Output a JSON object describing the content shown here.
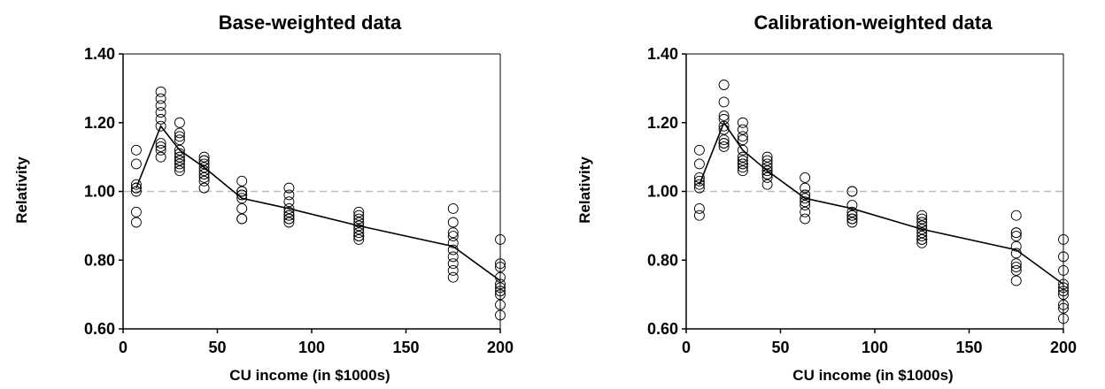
{
  "chart_data": [
    {
      "type": "scatter",
      "title": "Base-weighted data",
      "xlabel": "CU income (in $1000s)",
      "ylabel": "Relativity",
      "xlim": [
        0,
        200
      ],
      "ylim": [
        0.6,
        1.4
      ],
      "xticks": [
        0,
        50,
        100,
        150,
        200
      ],
      "yticks": [
        0.6,
        0.8,
        1.0,
        1.2,
        1.4
      ],
      "xtick_labels": [
        "0",
        "50",
        "100",
        "150",
        "200"
      ],
      "ytick_labels": [
        "0.60",
        "0.80",
        "1.00",
        "1.20",
        "1.40"
      ],
      "reference_line": {
        "y": 1.0,
        "style": "dashed",
        "color": "#bbbbbb"
      },
      "grid": false,
      "points": {
        "x": [
          7,
          7,
          7,
          7,
          7,
          7,
          7,
          7,
          20,
          20,
          20,
          20,
          20,
          20,
          20,
          20,
          20,
          20,
          30,
          30,
          30,
          30,
          30,
          30,
          30,
          30,
          30,
          30,
          30,
          30,
          43,
          43,
          43,
          43,
          43,
          43,
          43,
          43,
          43,
          43,
          63,
          63,
          63,
          63,
          63,
          63,
          63,
          63,
          63,
          88,
          88,
          88,
          88,
          88,
          88,
          88,
          88,
          88,
          88,
          125,
          125,
          125,
          125,
          125,
          125,
          125,
          125,
          125,
          125,
          175,
          175,
          175,
          175,
          175,
          175,
          175,
          175,
          175,
          175,
          200,
          200,
          200,
          200,
          200,
          200,
          200,
          200,
          200,
          200
        ],
        "y": [
          1.12,
          1.08,
          1.02,
          1.01,
          1.0,
          0.94,
          0.91,
          1.01,
          1.29,
          1.27,
          1.25,
          1.23,
          1.21,
          1.19,
          1.14,
          1.13,
          1.12,
          1.1,
          1.2,
          1.17,
          1.16,
          1.15,
          1.12,
          1.11,
          1.1,
          1.09,
          1.09,
          1.08,
          1.07,
          1.06,
          1.1,
          1.09,
          1.08,
          1.07,
          1.06,
          1.05,
          1.04,
          1.03,
          1.01,
          1.09,
          1.03,
          1.0,
          1.0,
          0.99,
          0.99,
          0.98,
          0.95,
          0.92,
          0.92,
          1.01,
          0.99,
          0.97,
          0.95,
          0.94,
          0.93,
          0.93,
          0.92,
          0.91,
          0.92,
          0.94,
          0.93,
          0.92,
          0.91,
          0.9,
          0.89,
          0.88,
          0.87,
          0.87,
          0.86,
          0.95,
          0.91,
          0.88,
          0.87,
          0.85,
          0.83,
          0.81,
          0.79,
          0.77,
          0.75,
          0.86,
          0.79,
          0.78,
          0.75,
          0.73,
          0.72,
          0.71,
          0.7,
          0.67,
          0.64
        ]
      },
      "series": [
        {
          "type": "line",
          "x": [
            7,
            20,
            30,
            43,
            63,
            88,
            125,
            175,
            200
          ],
          "y": [
            1.01,
            1.19,
            1.12,
            1.07,
            0.98,
            0.95,
            0.9,
            0.84,
            0.74
          ]
        }
      ]
    },
    {
      "type": "scatter",
      "title": "Calibration-weighted data",
      "xlabel": "CU income (in $1000s)",
      "ylabel": "Relativity",
      "xlim": [
        0,
        200
      ],
      "ylim": [
        0.6,
        1.4
      ],
      "xticks": [
        0,
        50,
        100,
        150,
        200
      ],
      "yticks": [
        0.6,
        0.8,
        1.0,
        1.2,
        1.4
      ],
      "xtick_labels": [
        "0",
        "50",
        "100",
        "150",
        "200"
      ],
      "ytick_labels": [
        "0.60",
        "0.80",
        "1.00",
        "1.20",
        "1.40"
      ],
      "reference_line": {
        "y": 1.0,
        "style": "dashed",
        "color": "#bbbbbb"
      },
      "grid": false,
      "points": {
        "x": [
          7,
          7,
          7,
          7,
          7,
          7,
          7,
          7,
          20,
          20,
          20,
          20,
          20,
          20,
          20,
          20,
          20,
          20,
          30,
          30,
          30,
          30,
          30,
          30,
          30,
          30,
          30,
          30,
          30,
          43,
          43,
          43,
          43,
          43,
          43,
          43,
          43,
          43,
          43,
          63,
          63,
          63,
          63,
          63,
          63,
          63,
          63,
          63,
          88,
          88,
          88,
          88,
          88,
          88,
          88,
          88,
          88,
          88,
          125,
          125,
          125,
          125,
          125,
          125,
          125,
          125,
          125,
          125,
          175,
          175,
          175,
          175,
          175,
          175,
          175,
          175,
          175,
          175,
          200,
          200,
          200,
          200,
          200,
          200,
          200,
          200,
          200,
          200
        ],
        "y": [
          1.12,
          1.08,
          1.04,
          1.03,
          1.02,
          1.01,
          0.95,
          0.93,
          1.31,
          1.26,
          1.22,
          1.21,
          1.19,
          1.18,
          1.15,
          1.14,
          1.14,
          1.13,
          1.2,
          1.18,
          1.16,
          1.15,
          1.12,
          1.1,
          1.09,
          1.08,
          1.08,
          1.07,
          1.06,
          1.1,
          1.09,
          1.08,
          1.07,
          1.06,
          1.06,
          1.05,
          1.05,
          1.04,
          1.02,
          1.04,
          1.01,
          0.99,
          0.99,
          0.98,
          0.97,
          0.96,
          0.94,
          0.92,
          1.0,
          1.0,
          0.96,
          0.94,
          0.93,
          0.93,
          0.92,
          0.92,
          0.91,
          0.92,
          0.93,
          0.92,
          0.91,
          0.9,
          0.89,
          0.88,
          0.87,
          0.86,
          0.86,
          0.85,
          0.93,
          0.88,
          0.88,
          0.87,
          0.84,
          0.82,
          0.79,
          0.78,
          0.77,
          0.74,
          0.86,
          0.81,
          0.77,
          0.73,
          0.72,
          0.71,
          0.7,
          0.67,
          0.66,
          0.63
        ]
      },
      "series": [
        {
          "type": "line",
          "x": [
            7,
            20,
            30,
            43,
            63,
            88,
            125,
            175,
            200
          ],
          "y": [
            1.02,
            1.2,
            1.12,
            1.06,
            0.98,
            0.95,
            0.89,
            0.83,
            0.73
          ]
        }
      ]
    }
  ]
}
